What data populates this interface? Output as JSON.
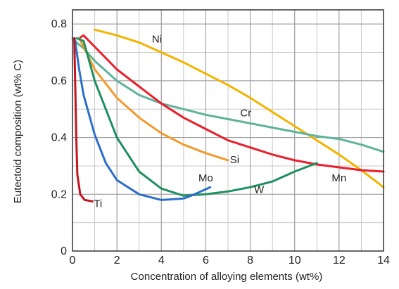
{
  "chart_data": {
    "type": "line",
    "xlabel": "Concentration of alloying elements (wt%)",
    "ylabel": "Eutectoid composition (wt% C)",
    "xlim": [
      0,
      14
    ],
    "ylim": [
      0,
      0.85
    ],
    "x_ticks": [
      0,
      2,
      4,
      6,
      8,
      10,
      12,
      14
    ],
    "x_tick_labels": [
      "0",
      "2",
      "4",
      "6",
      "8",
      "10",
      "12",
      "14"
    ],
    "y_ticks": [
      0,
      0.2,
      0.4,
      0.6,
      0.8
    ],
    "y_tick_labels": [
      "0",
      "0.2",
      "0.4",
      "0.6",
      "0.8"
    ],
    "x_minor_step": 1,
    "y_minor_step": 0.1,
    "grid": true,
    "series": [
      {
        "name": "Ni",
        "color": "#f2b400",
        "label_at": [
          3.8,
          0.735
        ],
        "points": [
          [
            1,
            0.78
          ],
          [
            2,
            0.76
          ],
          [
            3,
            0.735
          ],
          [
            4,
            0.7
          ],
          [
            5,
            0.665
          ],
          [
            6,
            0.625
          ],
          [
            7,
            0.585
          ],
          [
            8,
            0.54
          ],
          [
            9,
            0.49
          ],
          [
            10,
            0.44
          ],
          [
            11,
            0.39
          ],
          [
            12,
            0.34
          ],
          [
            13,
            0.285
          ],
          [
            14,
            0.225
          ]
        ]
      },
      {
        "name": "Cr",
        "color": "#5fb39a",
        "label_at": [
          7.8,
          0.475
        ],
        "points": [
          [
            0,
            0.75
          ],
          [
            0.25,
            0.73
          ],
          [
            0.5,
            0.715
          ],
          [
            1,
            0.67
          ],
          [
            2,
            0.6
          ],
          [
            3,
            0.55
          ],
          [
            4,
            0.52
          ],
          [
            5,
            0.5
          ],
          [
            6,
            0.48
          ],
          [
            7,
            0.465
          ],
          [
            8,
            0.45
          ],
          [
            9,
            0.435
          ],
          [
            10,
            0.42
          ],
          [
            11,
            0.405
          ],
          [
            12,
            0.395
          ],
          [
            13,
            0.375
          ],
          [
            14,
            0.35
          ]
        ]
      },
      {
        "name": "Mn",
        "color": "#e8202c",
        "label_at": [
          12.0,
          0.245
        ],
        "points": [
          [
            0.3,
            0.75
          ],
          [
            0.5,
            0.76
          ],
          [
            1,
            0.72
          ],
          [
            2,
            0.64
          ],
          [
            3,
            0.58
          ],
          [
            4,
            0.52
          ],
          [
            5,
            0.47
          ],
          [
            6,
            0.43
          ],
          [
            7,
            0.39
          ],
          [
            8,
            0.365
          ],
          [
            9,
            0.34
          ],
          [
            10,
            0.32
          ],
          [
            11,
            0.305
          ],
          [
            12,
            0.295
          ],
          [
            13,
            0.285
          ],
          [
            14,
            0.28
          ]
        ]
      },
      {
        "name": "Si",
        "color": "#f39a2b",
        "label_at": [
          7.3,
          0.31
        ],
        "points": [
          [
            0.3,
            0.75
          ],
          [
            0.5,
            0.72
          ],
          [
            1,
            0.64
          ],
          [
            2,
            0.54
          ],
          [
            3,
            0.47
          ],
          [
            4,
            0.415
          ],
          [
            5,
            0.375
          ],
          [
            6,
            0.345
          ],
          [
            7,
            0.32
          ]
        ]
      },
      {
        "name": "W",
        "color": "#1e9060",
        "label_at": [
          8.4,
          0.205
        ],
        "points": [
          [
            0.2,
            0.75
          ],
          [
            0.5,
            0.74
          ],
          [
            1,
            0.6
          ],
          [
            2,
            0.4
          ],
          [
            3,
            0.28
          ],
          [
            4,
            0.22
          ],
          [
            5,
            0.195
          ],
          [
            6,
            0.2
          ],
          [
            7,
            0.21
          ],
          [
            8,
            0.225
          ],
          [
            9,
            0.245
          ],
          [
            10,
            0.28
          ],
          [
            11,
            0.31
          ]
        ]
      },
      {
        "name": "Mo",
        "color": "#2c6fc9",
        "label_at": [
          6.0,
          0.245
        ],
        "points": [
          [
            0.1,
            0.75
          ],
          [
            0.3,
            0.64
          ],
          [
            0.5,
            0.55
          ],
          [
            1,
            0.41
          ],
          [
            1.5,
            0.31
          ],
          [
            2,
            0.25
          ],
          [
            3,
            0.2
          ],
          [
            4,
            0.18
          ],
          [
            5,
            0.185
          ],
          [
            5.5,
            0.2
          ],
          [
            6.2,
            0.225
          ]
        ]
      },
      {
        "name": "Ti",
        "color": "#c2141f",
        "label_at": [
          1.15,
          0.155
        ],
        "points": [
          [
            0.08,
            0.75
          ],
          [
            0.12,
            0.6
          ],
          [
            0.17,
            0.4
          ],
          [
            0.22,
            0.27
          ],
          [
            0.35,
            0.2
          ],
          [
            0.55,
            0.18
          ],
          [
            0.9,
            0.175
          ]
        ]
      }
    ]
  }
}
